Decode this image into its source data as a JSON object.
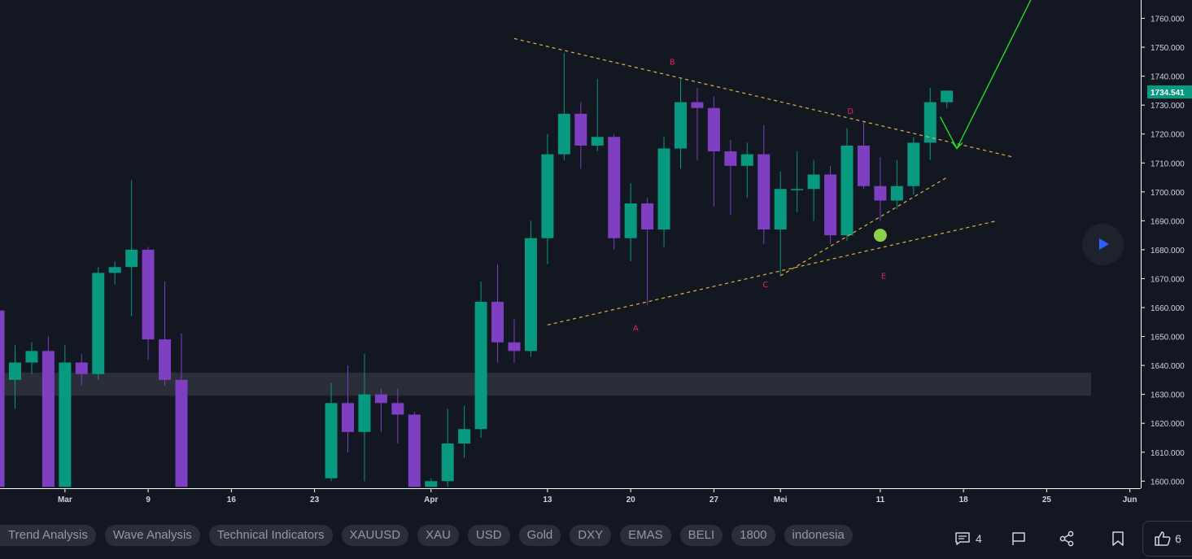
{
  "chart_data": {
    "type": "candlestick",
    "symbol_price_label": "1734.541",
    "ylim": [
      1598,
      1766
    ],
    "y_ticks": [
      "1760.000",
      "1750.000",
      "1740.000",
      "1730.000",
      "1720.000",
      "1710.000",
      "1700.000",
      "1690.000",
      "1680.000",
      "1670.000",
      "1660.000",
      "1650.000",
      "1640.000",
      "1630.000",
      "1620.000",
      "1610.000",
      "1600.000"
    ],
    "x_ticks": [
      {
        "label": "Mar",
        "i": 3
      },
      {
        "label": "9",
        "i": 8
      },
      {
        "label": "16",
        "i": 13
      },
      {
        "label": "23",
        "i": 18
      },
      {
        "label": "Apr",
        "i": 25
      },
      {
        "label": "13",
        "i": 32
      },
      {
        "label": "20",
        "i": 37
      },
      {
        "label": "27",
        "i": 42
      },
      {
        "label": "Mei",
        "i": 46
      },
      {
        "label": "11",
        "i": 52
      },
      {
        "label": "18",
        "i": 57
      },
      {
        "label": "25",
        "i": 62
      },
      {
        "label": "Jun",
        "i": 67
      }
    ],
    "candles": [
      {
        "i": -1,
        "o": 1659,
        "h": 1659,
        "l": 1598,
        "c": 1598
      },
      {
        "i": 0,
        "o": 1635,
        "h": 1647,
        "l": 1625,
        "c": 1641
      },
      {
        "i": 1,
        "o": 1641,
        "h": 1648,
        "l": 1637,
        "c": 1645
      },
      {
        "i": 2,
        "o": 1645,
        "h": 1650,
        "l": 1598,
        "c": 1598
      },
      {
        "i": 3,
        "o": 1598,
        "h": 1647,
        "l": 1598,
        "c": 1641
      },
      {
        "i": 4,
        "o": 1641,
        "h": 1644,
        "l": 1633,
        "c": 1637
      },
      {
        "i": 5,
        "o": 1637,
        "h": 1674,
        "l": 1635,
        "c": 1672
      },
      {
        "i": 6,
        "o": 1672,
        "h": 1676,
        "l": 1668,
        "c": 1674
      },
      {
        "i": 7,
        "o": 1674,
        "h": 1704,
        "l": 1657,
        "c": 1680
      },
      {
        "i": 8,
        "o": 1680,
        "h": 1681,
        "l": 1642,
        "c": 1649
      },
      {
        "i": 9,
        "o": 1649,
        "h": 1669,
        "l": 1633,
        "c": 1635
      },
      {
        "i": 10,
        "o": 1635,
        "h": 1651,
        "l": 1598,
        "c": 1598
      },
      {
        "i": 19,
        "o": 1601,
        "h": 1634,
        "l": 1600,
        "c": 1627
      },
      {
        "i": 20,
        "o": 1627,
        "h": 1640,
        "l": 1610,
        "c": 1617
      },
      {
        "i": 21,
        "o": 1617,
        "h": 1644,
        "l": 1600,
        "c": 1630
      },
      {
        "i": 22,
        "o": 1630,
        "h": 1632,
        "l": 1617,
        "c": 1627
      },
      {
        "i": 23,
        "o": 1627,
        "h": 1632,
        "l": 1613,
        "c": 1623
      },
      {
        "i": 24,
        "o": 1623,
        "h": 1624,
        "l": 1598,
        "c": 1598
      },
      {
        "i": 25,
        "o": 1598,
        "h": 1601,
        "l": 1598,
        "c": 1600
      },
      {
        "i": 26,
        "o": 1600,
        "h": 1625,
        "l": 1598,
        "c": 1613
      },
      {
        "i": 27,
        "o": 1613,
        "h": 1626,
        "l": 1608,
        "c": 1618
      },
      {
        "i": 28,
        "o": 1618,
        "h": 1669,
        "l": 1615,
        "c": 1662
      },
      {
        "i": 29,
        "o": 1662,
        "h": 1675,
        "l": 1641,
        "c": 1648
      },
      {
        "i": 30,
        "o": 1648,
        "h": 1656,
        "l": 1641,
        "c": 1645
      },
      {
        "i": 31,
        "o": 1645,
        "h": 1690,
        "l": 1643,
        "c": 1684
      },
      {
        "i": 32,
        "o": 1684,
        "h": 1720,
        "l": 1675,
        "c": 1713
      },
      {
        "i": 33,
        "o": 1713,
        "h": 1748,
        "l": 1711,
        "c": 1727
      },
      {
        "i": 34,
        "o": 1727,
        "h": 1731,
        "l": 1708,
        "c": 1716
      },
      {
        "i": 35,
        "o": 1716,
        "h": 1739,
        "l": 1714,
        "c": 1719
      },
      {
        "i": 36,
        "o": 1719,
        "h": 1720,
        "l": 1680,
        "c": 1684
      },
      {
        "i": 37,
        "o": 1684,
        "h": 1703,
        "l": 1676,
        "c": 1696
      },
      {
        "i": 38,
        "o": 1696,
        "h": 1698,
        "l": 1661,
        "c": 1687
      },
      {
        "i": 39,
        "o": 1687,
        "h": 1719,
        "l": 1681,
        "c": 1715
      },
      {
        "i": 40,
        "o": 1715,
        "h": 1739,
        "l": 1708,
        "c": 1731
      },
      {
        "i": 41,
        "o": 1731,
        "h": 1736,
        "l": 1711,
        "c": 1729
      },
      {
        "i": 42,
        "o": 1729,
        "h": 1733,
        "l": 1695,
        "c": 1714
      },
      {
        "i": 43,
        "o": 1714,
        "h": 1718,
        "l": 1692,
        "c": 1709
      },
      {
        "i": 44,
        "o": 1709,
        "h": 1717,
        "l": 1698,
        "c": 1713
      },
      {
        "i": 45,
        "o": 1713,
        "h": 1723,
        "l": 1682,
        "c": 1687
      },
      {
        "i": 46,
        "o": 1687,
        "h": 1707,
        "l": 1671,
        "c": 1701
      },
      {
        "i": 47,
        "o": 1701,
        "h": 1714,
        "l": 1693,
        "c": 1701
      },
      {
        "i": 48,
        "o": 1701,
        "h": 1711,
        "l": 1690,
        "c": 1706
      },
      {
        "i": 49,
        "o": 1706,
        "h": 1709,
        "l": 1682,
        "c": 1685
      },
      {
        "i": 50,
        "o": 1685,
        "h": 1722,
        "l": 1683,
        "c": 1716
      },
      {
        "i": 51,
        "o": 1716,
        "h": 1724,
        "l": 1701,
        "c": 1702
      },
      {
        "i": 52,
        "o": 1702,
        "h": 1712,
        "l": 1690,
        "c": 1697
      },
      {
        "i": 53,
        "o": 1697,
        "h": 1711,
        "l": 1694,
        "c": 1702
      },
      {
        "i": 54,
        "o": 1702,
        "h": 1719,
        "l": 1699,
        "c": 1717
      },
      {
        "i": 55,
        "o": 1717,
        "h": 1736,
        "l": 1711,
        "c": 1731
      },
      {
        "i": 56,
        "o": 1731,
        "h": 1735,
        "l": 1729,
        "c": 1735
      }
    ],
    "zone": {
      "from": 1629.5,
      "to": 1637.5
    },
    "trendlines": [
      {
        "from": {
          "i": 30,
          "v": 1753
        },
        "to": {
          "i": 60,
          "v": 1712
        }
      },
      {
        "from": {
          "i": 32,
          "v": 1654
        },
        "to": {
          "i": 59,
          "v": 1690
        }
      },
      {
        "from": {
          "i": 46,
          "v": 1671
        },
        "to": {
          "i": 56,
          "v": 1705
        }
      }
    ],
    "projection_points": [
      {
        "i": 55.6,
        "v": 1726
      },
      {
        "i": 56.6,
        "v": 1715
      },
      {
        "i": 61.1,
        "v": 1767
      }
    ],
    "marker": {
      "i": 52,
      "v": 1685
    },
    "wave_labels": [
      {
        "text": "A",
        "i": 37.3,
        "v": 1652
      },
      {
        "text": "B",
        "i": 39.5,
        "v": 1744
      },
      {
        "text": "C",
        "i": 45.1,
        "v": 1667
      },
      {
        "text": "D",
        "i": 50.2,
        "v": 1727
      },
      {
        "text": "E",
        "i": 52.2,
        "v": 1670
      }
    ],
    "colors": {
      "up": "#089981",
      "down": "#7e3fc2",
      "trendline": "#e3b341",
      "projection": "#22dd22",
      "marker": "#8ed04a",
      "zone": "#2a2e39",
      "price_tag": "#089981",
      "wave_label": "#e0245e"
    }
  },
  "tags": [
    "Trend Analysis",
    "Wave Analysis",
    "Technical Indicators",
    "XAUUSD",
    "XAU",
    "USD",
    "Gold",
    "DXY",
    "EMAS",
    "BELI",
    "1800",
    "indonesia"
  ],
  "footer": {
    "comments_count": "4",
    "likes_count": "6"
  },
  "icons": {
    "play": "play-icon",
    "comments": "comment-icon",
    "flag": "flag-icon",
    "share": "share-icon",
    "bookmark": "bookmark-icon",
    "like": "thumbs-up-icon"
  }
}
